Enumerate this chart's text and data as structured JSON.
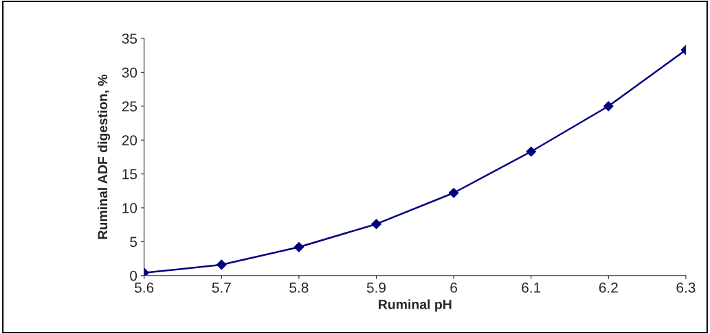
{
  "chart_data": {
    "type": "line",
    "xlabel": "Ruminal pH",
    "ylabel": "Ruminal ADF digestion, %",
    "x": [
      5.6,
      5.7,
      5.8,
      5.9,
      6.0,
      6.1,
      6.2,
      6.3
    ],
    "series": [
      {
        "color": "#000080",
        "values": [
          0.4,
          1.6,
          4.2,
          7.6,
          12.2,
          18.3,
          25.0,
          33.3
        ]
      }
    ],
    "xlim": [
      5.6,
      6.3
    ],
    "xticks": [
      5.6,
      5.7,
      5.8,
      5.9,
      {
        "value": 6.0,
        "label": "6"
      },
      6.1,
      6.2,
      6.3
    ],
    "ylim": [
      0,
      35
    ],
    "yticks": [
      0,
      5,
      10,
      15,
      20,
      25,
      30,
      35
    ],
    "grid": false,
    "legend": false,
    "marker": "diamond",
    "line_style": "solid"
  }
}
